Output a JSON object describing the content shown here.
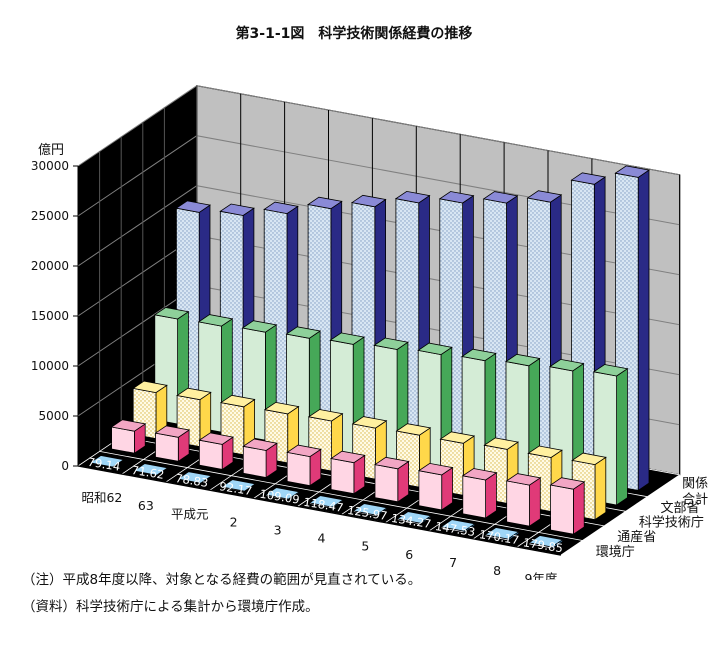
{
  "chart_data": {
    "type": "bar",
    "subtype": "3d-grouped-bar",
    "title": "第3-1-1図　科学技術関係経費の推移",
    "unit_label": "億円",
    "ylim": [
      0,
      30000
    ],
    "yticks": [
      "0",
      "5000",
      "10000",
      "15000",
      "20000",
      "25000",
      "30000"
    ],
    "categories": [
      "昭和62",
      "63",
      "平成元",
      "2",
      "3",
      "4",
      "5",
      "6",
      "7",
      "8",
      "9年度"
    ],
    "series": [
      {
        "name": "環境庁",
        "color": "#5fb8ee",
        "values": [
          79.14,
          71.62,
          78.83,
          92.17,
          109.09,
          118.47,
          125.97,
          134.27,
          147.53,
          170.17,
          179.85
        ],
        "labels": [
          "79.14",
          "71.62",
          "78.83",
          "92.17",
          "109.09",
          "118.47",
          "125.97",
          "134.27",
          "147.53",
          "170.17",
          "179.85"
        ]
      },
      {
        "name": "通産省",
        "color": "#e85c8c",
        "values": [
          2200,
          2400,
          2500,
          2700,
          2900,
          3100,
          3300,
          3500,
          3800,
          4100,
          4500
        ]
      },
      {
        "name": "科学技術庁",
        "color": "#f5c83a",
        "values": [
          4600,
          4700,
          4800,
          4900,
          5000,
          5100,
          5200,
          5200,
          5400,
          5400,
          5500
        ]
      },
      {
        "name": "文部省",
        "color": "#4eb060",
        "values": [
          10500,
          10600,
          10800,
          11000,
          11200,
          11500,
          11800,
          12000,
          12300,
          12600,
          12900
        ]
      },
      {
        "name": "関係経費合計",
        "color": "#2c2c8c",
        "values": [
          19700,
          20200,
          21200,
          22500,
          23500,
          24700,
          25500,
          26300,
          27200,
          29800,
          31300
        ]
      }
    ],
    "legend_position": "right-depth-axis",
    "grid": true
  },
  "notes": [
    "（注）平成8年度以降、対象となる経費の範囲が見直されている。",
    "（資料）科学技術庁による集計から環境庁作成。"
  ]
}
